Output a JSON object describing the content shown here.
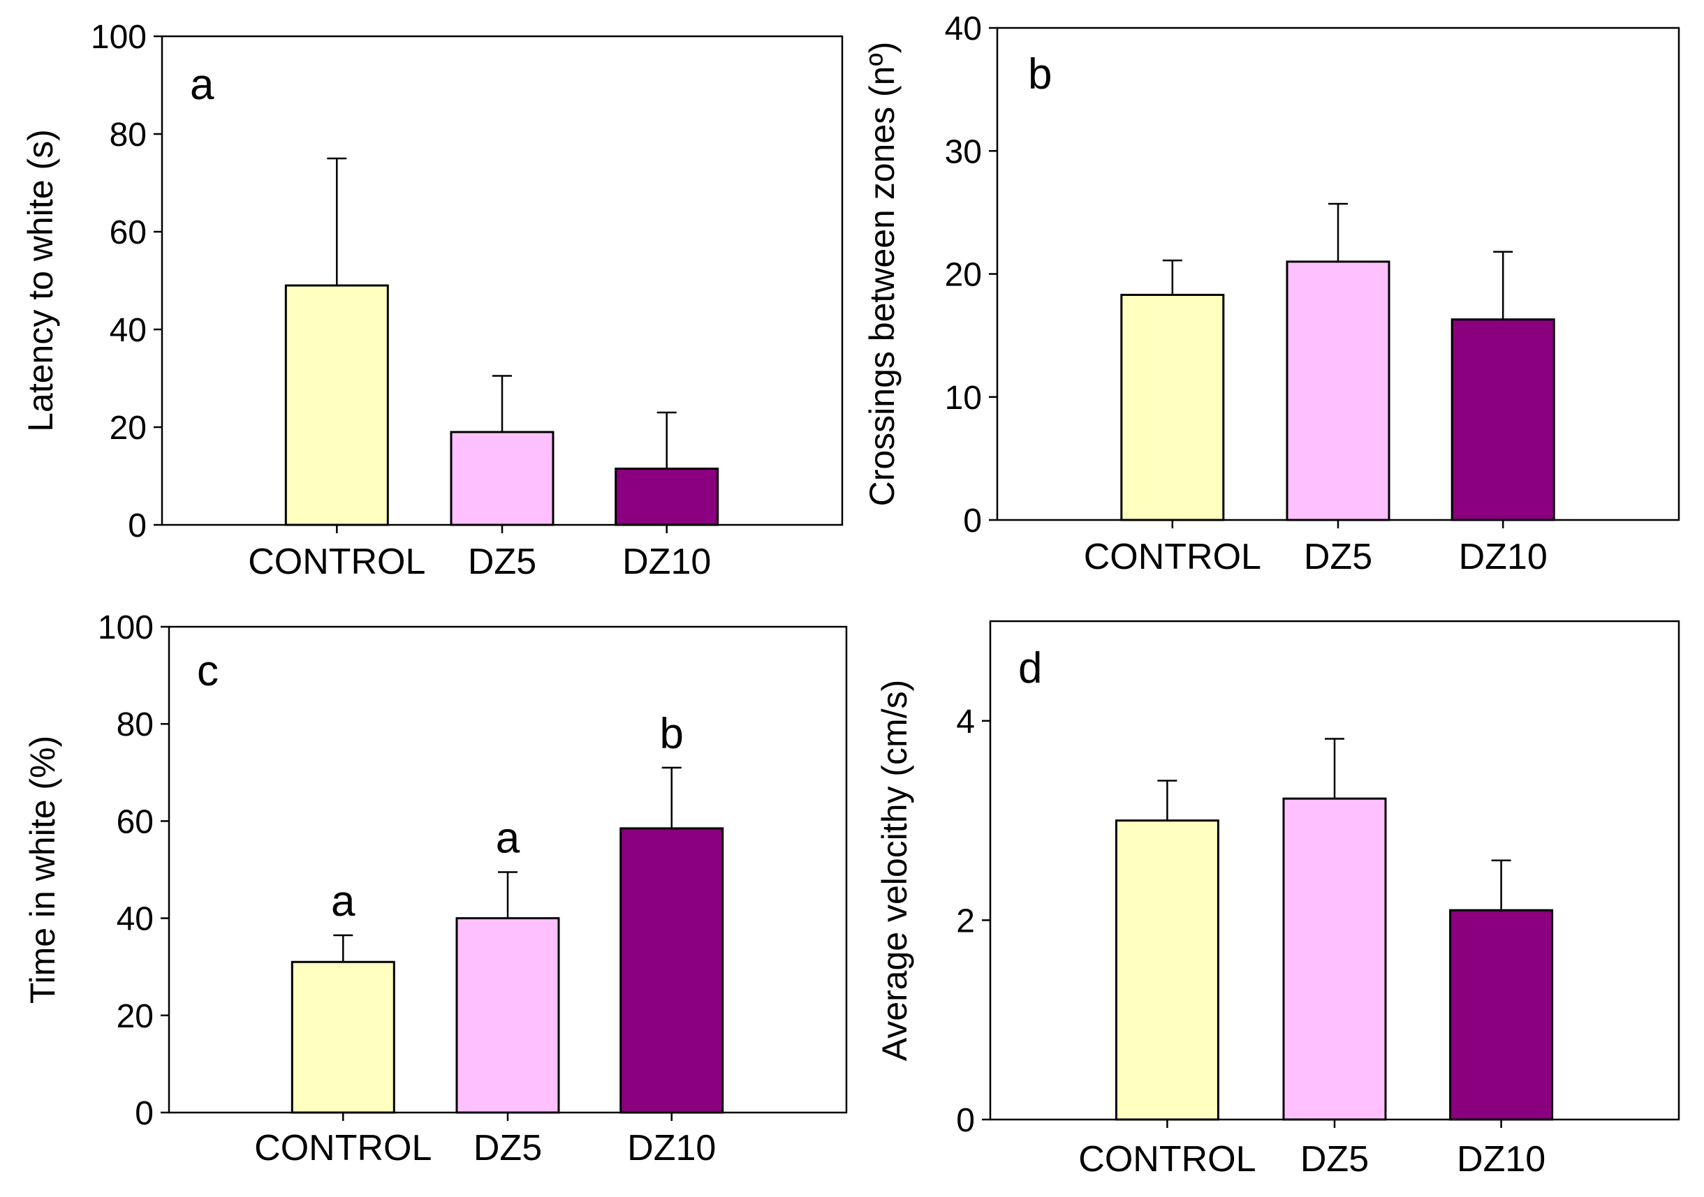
{
  "chart_data": [
    {
      "panel": "a",
      "type": "bar",
      "categories": [
        "CONTROL",
        "DZ5",
        "DZ10"
      ],
      "values": [
        49,
        19,
        11.5
      ],
      "error_up": [
        26,
        11.5,
        11.5
      ],
      "significance": [
        "",
        "",
        ""
      ],
      "ylabel": "Latency to white (s)",
      "xlabel": "",
      "ylim": [
        0,
        100
      ],
      "yticks": [
        0,
        20,
        40,
        60,
        80,
        100
      ],
      "bar_colors": [
        "#FFFFC0",
        "#FFC0FF",
        "#8B007F"
      ]
    },
    {
      "panel": "b",
      "type": "bar",
      "categories": [
        "CONTROL",
        "DZ5",
        "DZ10"
      ],
      "values": [
        18.3,
        21,
        16.3
      ],
      "error_up": [
        2.8,
        4.7,
        5.5
      ],
      "significance": [
        "",
        "",
        ""
      ],
      "ylabel": "Crossings between zones (nº)",
      "xlabel": "",
      "ylim": [
        0,
        40
      ],
      "yticks": [
        0,
        10,
        20,
        30,
        40
      ],
      "bar_colors": [
        "#FFFFC0",
        "#FFC0FF",
        "#8B007F"
      ]
    },
    {
      "panel": "c",
      "type": "bar",
      "categories": [
        "CONTROL",
        "DZ5",
        "DZ10"
      ],
      "values": [
        31,
        40,
        58.5
      ],
      "error_up": [
        5.5,
        9.5,
        12.5
      ],
      "significance": [
        "a",
        "a",
        "b"
      ],
      "ylabel": "Time in white (%)",
      "xlabel": "",
      "ylim": [
        0,
        100
      ],
      "yticks": [
        0,
        20,
        40,
        60,
        80,
        100
      ],
      "bar_colors": [
        "#FFFFC0",
        "#FFC0FF",
        "#8B007F"
      ]
    },
    {
      "panel": "d",
      "type": "bar",
      "categories": [
        "CONTROL",
        "DZ5",
        "DZ10"
      ],
      "values": [
        3,
        3.22,
        2.1
      ],
      "error_up": [
        0.4,
        0.6,
        0.5
      ],
      "significance": [
        "",
        "",
        ""
      ],
      "ylabel": "Average velocithy (cm/s)",
      "xlabel": "",
      "ylim": [
        0,
        5
      ],
      "yticks": [
        0,
        2,
        4
      ],
      "bar_colors": [
        "#FFFFC0",
        "#FFC0FF",
        "#8B007F"
      ]
    }
  ]
}
